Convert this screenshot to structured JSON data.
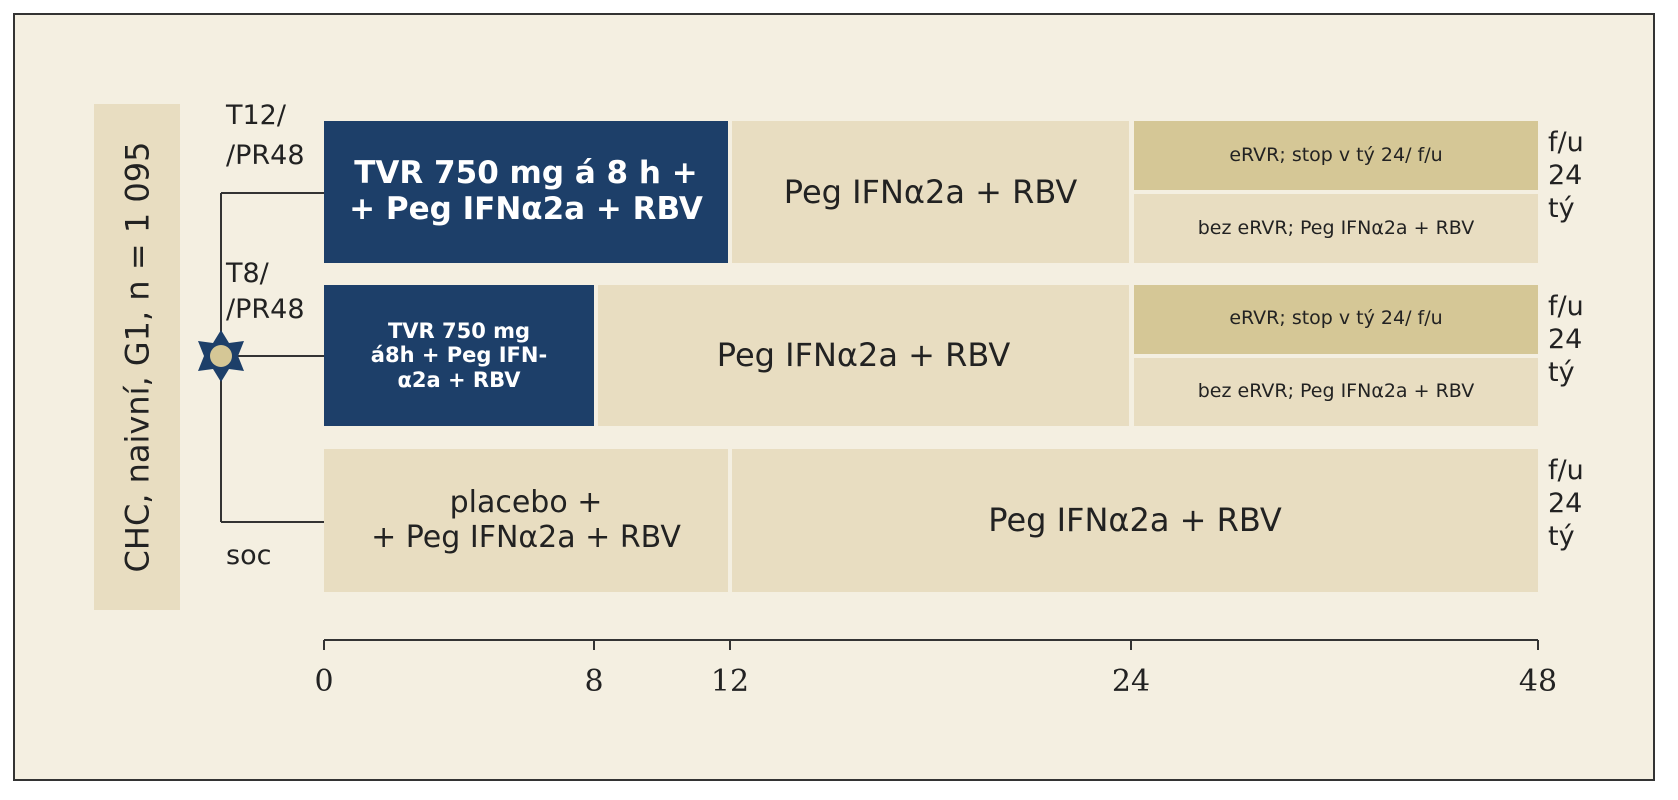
{
  "side_label": "CHC, naivní, G1, n = 1 095",
  "arms": [
    {
      "label_lines": [
        "T12/",
        "/PR48"
      ],
      "segments": [
        [
          "TVR 750 mg á 8 h +",
          "+ Peg IFNα2a + RBV"
        ],
        [
          "Peg IFNα2a + RBV"
        ]
      ],
      "subgroups": [
        "eRVR; stop v tý 24/ f/u",
        "bez eRVR; Peg IFNα2a + RBV"
      ],
      "followup_lines": [
        "f/u",
        "24",
        "tý"
      ]
    },
    {
      "label_lines": [
        "T8/",
        "/PR48"
      ],
      "segments": [
        [
          "TVR 750 mg",
          "á8h + Peg IFN-",
          "α2a + RBV"
        ],
        [
          "Peg IFNα2a + RBV"
        ]
      ],
      "subgroups": [
        "eRVR; stop v tý 24/ f/u",
        "bez eRVR; Peg IFNα2a + RBV"
      ],
      "followup_lines": [
        "f/u",
        "24",
        "tý"
      ]
    },
    {
      "label_lines": [
        "soc"
      ],
      "segments": [
        [
          "placebo +",
          "+ Peg IFNα2a + RBV"
        ],
        [
          "Peg IFNα2a + RBV"
        ]
      ],
      "subgroups": [],
      "followup_lines": [
        "f/u",
        "24",
        "tý"
      ]
    }
  ],
  "axis_ticks": [
    "0",
    "8",
    "12",
    "24",
    "48"
  ]
}
